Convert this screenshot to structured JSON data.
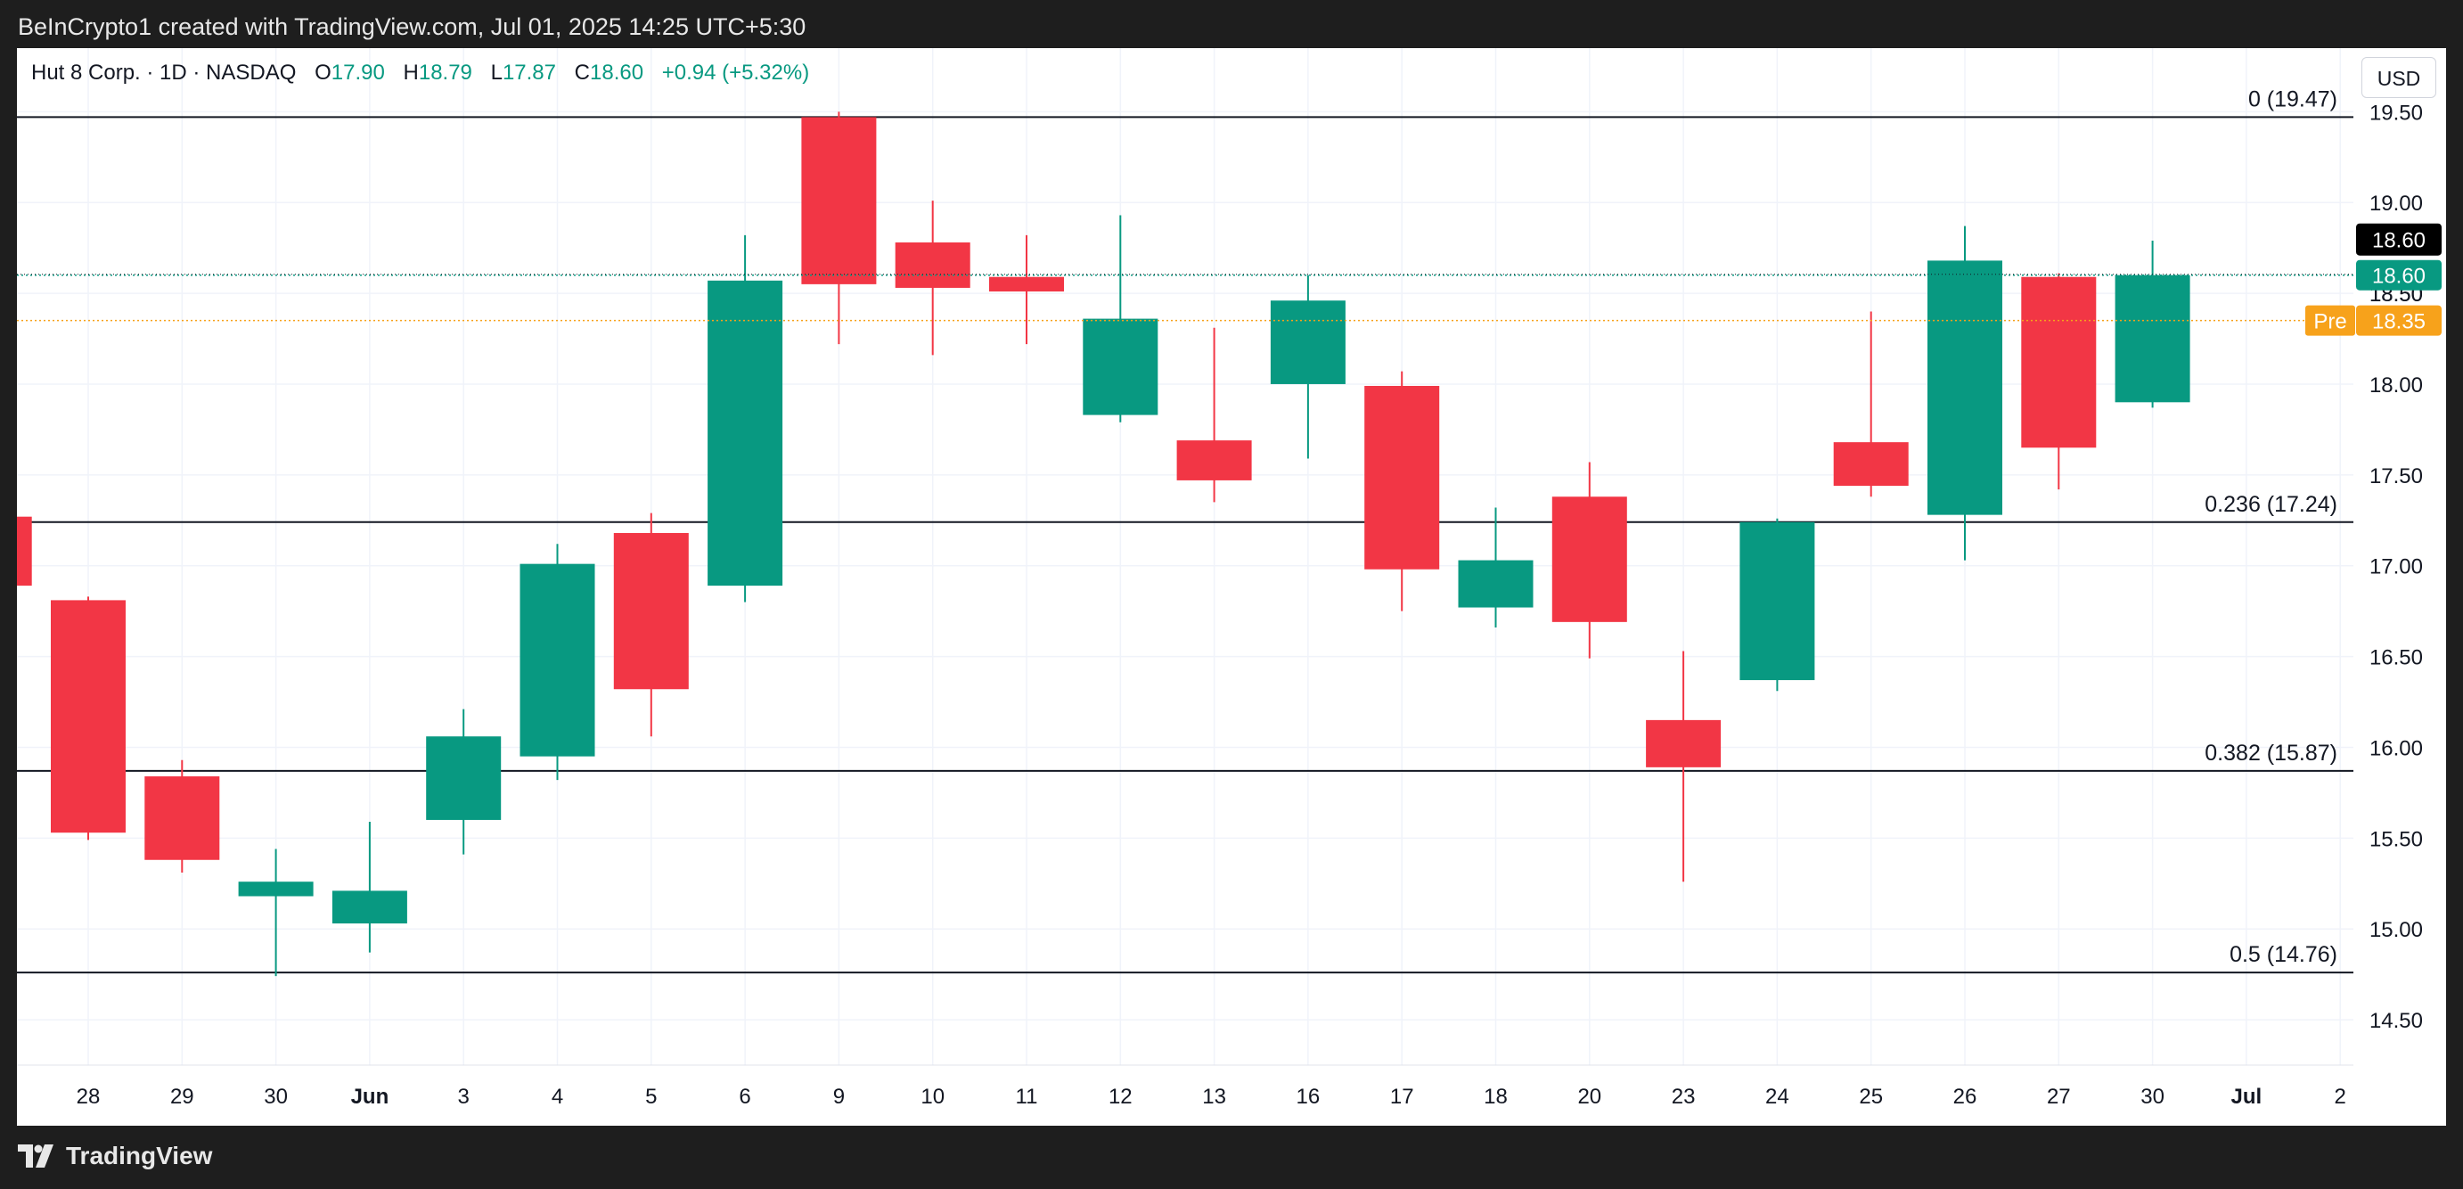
{
  "header": {
    "attribution": "BeInCrypto1 created with TradingView.com, Jul 01, 2025 14:25 UTC+5:30"
  },
  "legend": {
    "symbol": "Hut 8 Corp. · 1D · NASDAQ",
    "o_label": "O",
    "o_value": "17.90",
    "h_label": "H",
    "h_value": "18.79",
    "l_label": "L",
    "l_value": "17.87",
    "c_label": "C",
    "c_value": "18.60",
    "change": "+0.94 (+5.32%)"
  },
  "currency_button": "USD",
  "footer": {
    "brand": "TradingView"
  },
  "colors": {
    "up": "#089981",
    "down": "#f23645",
    "grid": "#f0f3fa",
    "pre_line": "#f7a21b",
    "last_label_bg": "#000000"
  },
  "chart_data": {
    "type": "candlestick",
    "ylim": [
      14.25,
      19.85
    ],
    "y_ticks": [
      "14.50",
      "15.00",
      "15.50",
      "16.00",
      "16.50",
      "17.00",
      "17.50",
      "18.00",
      "18.50",
      "19.00",
      "19.50"
    ],
    "x_labels": [
      "28",
      "29",
      "30",
      "Jun",
      "3",
      "4",
      "5",
      "6",
      "9",
      "10",
      "11",
      "12",
      "13",
      "16",
      "17",
      "18",
      "20",
      "23",
      "24",
      "25",
      "26",
      "27",
      "30",
      "Jul",
      "2"
    ],
    "candles": [
      {
        "x": "27",
        "o": 17.27,
        "h": 17.27,
        "l": 16.88,
        "c": 16.89
      },
      {
        "x": "28",
        "o": 16.81,
        "h": 16.83,
        "l": 15.49,
        "c": 15.53
      },
      {
        "x": "29",
        "o": 15.84,
        "h": 15.93,
        "l": 15.31,
        "c": 15.38
      },
      {
        "x": "30",
        "o": 15.18,
        "h": 15.44,
        "l": 14.74,
        "c": 15.26
      },
      {
        "x": "Jun 2",
        "o": 15.03,
        "h": 15.59,
        "l": 14.87,
        "c": 15.21
      },
      {
        "x": "3",
        "o": 15.6,
        "h": 16.21,
        "l": 15.41,
        "c": 16.06
      },
      {
        "x": "4",
        "o": 15.95,
        "h": 17.12,
        "l": 15.82,
        "c": 17.01
      },
      {
        "x": "5",
        "o": 17.18,
        "h": 17.29,
        "l": 16.06,
        "c": 16.32
      },
      {
        "x": "6",
        "o": 16.89,
        "h": 18.82,
        "l": 16.8,
        "c": 18.57
      },
      {
        "x": "9",
        "o": 19.47,
        "h": 19.5,
        "l": 18.22,
        "c": 18.55
      },
      {
        "x": "10",
        "o": 18.78,
        "h": 19.01,
        "l": 18.16,
        "c": 18.53
      },
      {
        "x": "11",
        "o": 18.59,
        "h": 18.82,
        "l": 18.22,
        "c": 18.51
      },
      {
        "x": "12",
        "o": 17.83,
        "h": 18.93,
        "l": 17.79,
        "c": 18.36
      },
      {
        "x": "13",
        "o": 17.69,
        "h": 18.31,
        "l": 17.35,
        "c": 17.47
      },
      {
        "x": "16",
        "o": 18.0,
        "h": 18.6,
        "l": 17.59,
        "c": 18.46
      },
      {
        "x": "17",
        "o": 17.99,
        "h": 18.07,
        "l": 16.75,
        "c": 16.98
      },
      {
        "x": "18",
        "o": 16.77,
        "h": 17.32,
        "l": 16.66,
        "c": 17.03
      },
      {
        "x": "20",
        "o": 17.38,
        "h": 17.57,
        "l": 16.49,
        "c": 16.69
      },
      {
        "x": "23",
        "o": 16.15,
        "h": 16.53,
        "l": 15.26,
        "c": 15.89
      },
      {
        "x": "24",
        "o": 16.37,
        "h": 17.26,
        "l": 16.31,
        "c": 17.24
      },
      {
        "x": "25",
        "o": 17.68,
        "h": 18.4,
        "l": 17.38,
        "c": 17.44
      },
      {
        "x": "26",
        "o": 17.28,
        "h": 18.87,
        "l": 17.03,
        "c": 18.68
      },
      {
        "x": "27",
        "o": 18.59,
        "h": 18.61,
        "l": 17.42,
        "c": 17.65
      },
      {
        "x": "30",
        "o": 17.9,
        "h": 18.79,
        "l": 17.87,
        "c": 18.6
      }
    ],
    "fib_levels": [
      {
        "label": "0 (19.47)",
        "value": 19.47
      },
      {
        "label": "0.236 (17.24)",
        "value": 17.24
      },
      {
        "label": "0.382 (15.87)",
        "value": 15.87
      },
      {
        "label": "0.5 (14.76)",
        "value": 14.76
      }
    ],
    "last_price": {
      "value": 18.6,
      "label": "18.60",
      "label2": "18.60"
    },
    "premarket": {
      "value": 18.35,
      "tag": "Pre",
      "label": "18.35"
    },
    "hidden_tick": "18.50"
  }
}
